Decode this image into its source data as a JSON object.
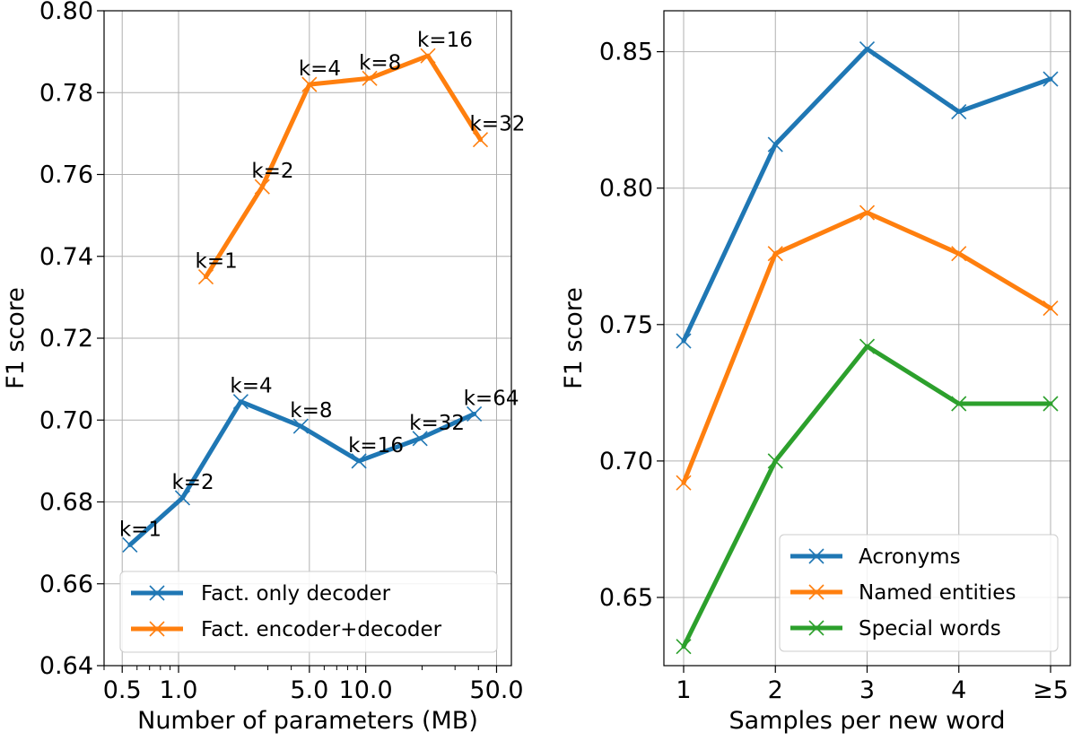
{
  "colors": {
    "series_blue": "#1f77b4",
    "series_orange": "#ff7f0e",
    "series_green": "#2ca02c",
    "grid": "#b0b0b0",
    "axis": "#000000"
  },
  "chart_data": [
    {
      "type": "line",
      "xscale": "log",
      "xlabel": "Number of parameters (MB)",
      "ylabel": "F1 score",
      "xlim": [
        0.4,
        60
      ],
      "ylim": [
        0.64,
        0.8
      ],
      "xticks": [
        0.5,
        1.0,
        5.0,
        10.0,
        50.0
      ],
      "xtick_labels": [
        "0.5",
        "1.0",
        "5.0",
        "10.0",
        "50.0"
      ],
      "yticks": [
        0.64,
        0.66,
        0.68,
        0.7,
        0.72,
        0.74,
        0.76,
        0.78,
        0.8
      ],
      "ytick_labels": [
        "0.64",
        "0.66",
        "0.68",
        "0.70",
        "0.72",
        "0.74",
        "0.76",
        "0.78",
        "0.80"
      ],
      "grid": true,
      "legend_position": "lower-right",
      "marker": "x",
      "series": [
        {
          "name": "Fact. only decoder",
          "color": "#1f77b4",
          "x": [
            0.55,
            1.05,
            2.15,
            4.5,
            9.2,
            19.5,
            38.0
          ],
          "y": [
            0.6695,
            0.681,
            0.7045,
            0.6985,
            0.69,
            0.6955,
            0.7015
          ],
          "point_labels": [
            "k=1",
            "k=2",
            "k=4",
            "k=8",
            "k=16",
            "k=32",
            "k=64"
          ]
        },
        {
          "name": "Fact. encoder+decoder",
          "color": "#ff7f0e",
          "x": [
            1.4,
            2.8,
            5.0,
            10.5,
            21.5,
            41.0
          ],
          "y": [
            0.735,
            0.757,
            0.782,
            0.7835,
            0.789,
            0.7685
          ],
          "point_labels": [
            "k=1",
            "k=2",
            "k=4",
            "k=8",
            "k=16",
            "k=32"
          ]
        }
      ]
    },
    {
      "type": "line",
      "xlabel": "Samples per new word",
      "ylabel": "F1 score",
      "categories": [
        "1",
        "2",
        "3",
        "4",
        "≥5"
      ],
      "ylim": [
        0.625,
        0.865
      ],
      "yticks": [
        0.65,
        0.7,
        0.75,
        0.8,
        0.85
      ],
      "ytick_labels": [
        "0.65",
        "0.70",
        "0.75",
        "0.80",
        "0.85"
      ],
      "grid": true,
      "legend_position": "lower-right",
      "marker": "x",
      "series": [
        {
          "name": "Acronyms",
          "color": "#1f77b4",
          "values": [
            0.744,
            0.816,
            0.851,
            0.828,
            0.84
          ]
        },
        {
          "name": "Named entities",
          "color": "#ff7f0e",
          "values": [
            0.692,
            0.776,
            0.791,
            0.776,
            0.756
          ]
        },
        {
          "name": "Special words",
          "color": "#2ca02c",
          "values": [
            0.632,
            0.7,
            0.742,
            0.721,
            0.721
          ]
        }
      ]
    }
  ]
}
